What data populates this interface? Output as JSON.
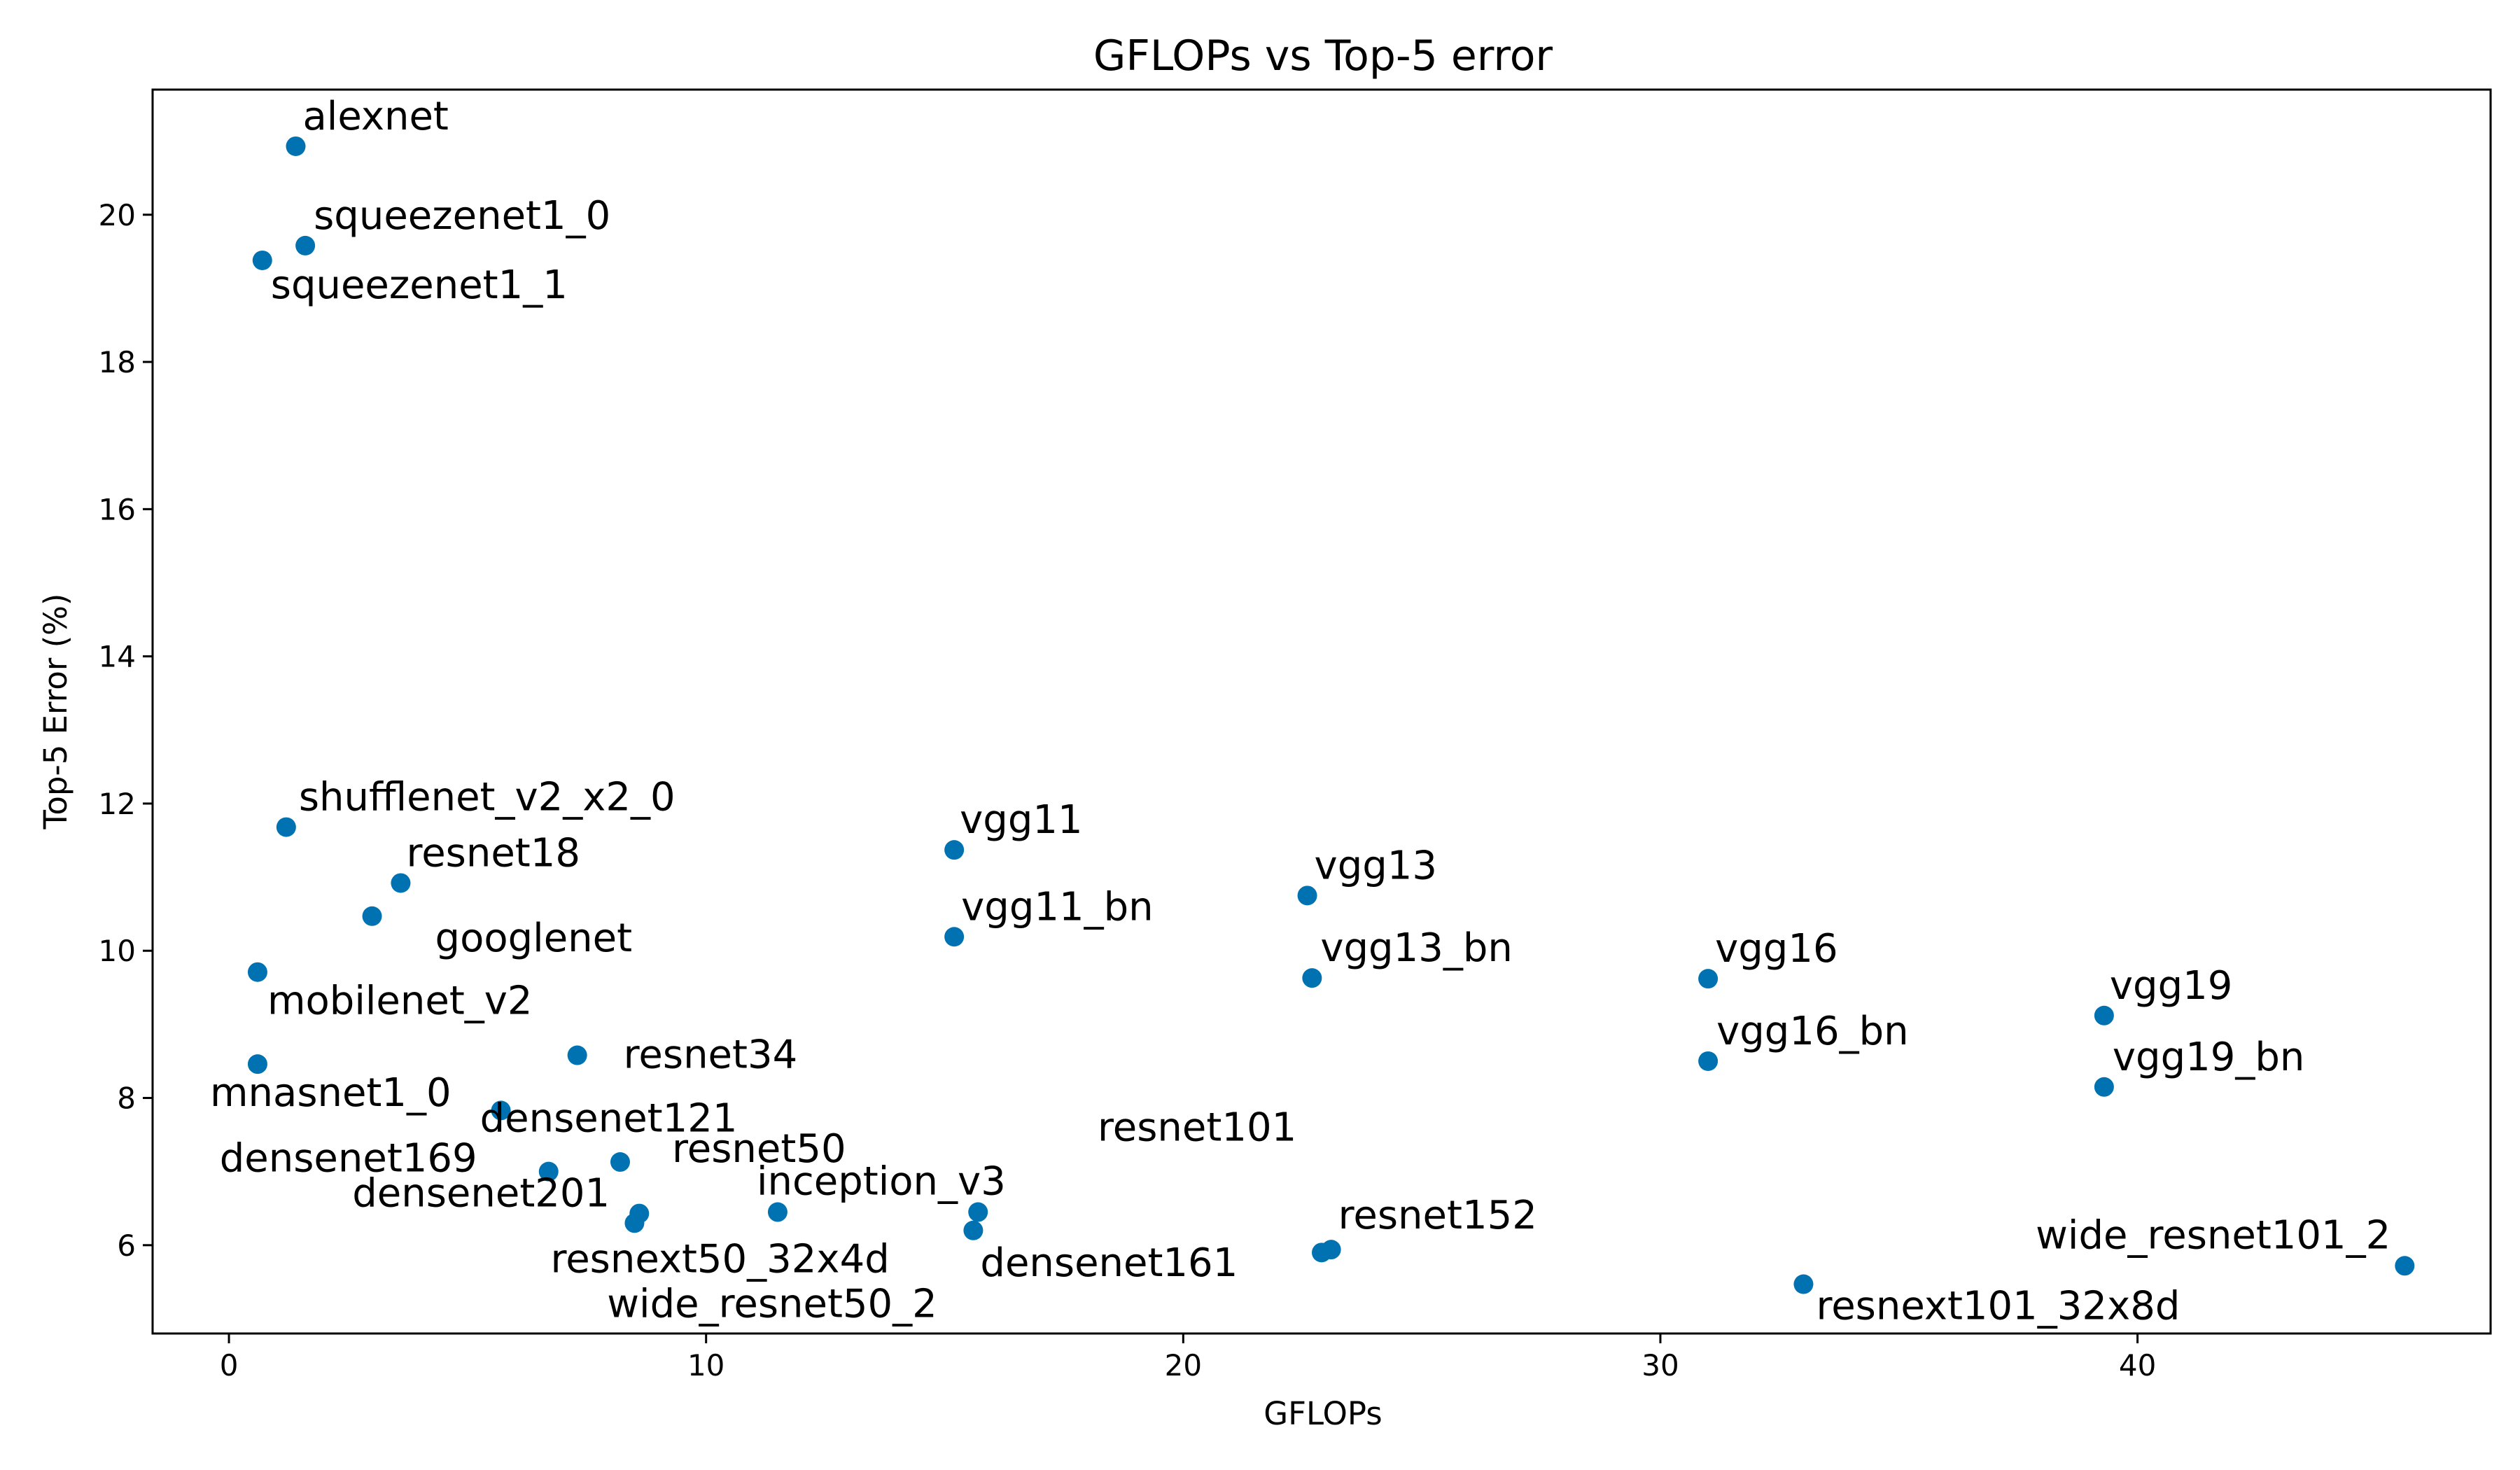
{
  "chart_data": {
    "type": "scatter",
    "title": "GFLOPs vs Top-5 error",
    "xlabel": "GFLOPs",
    "ylabel": "Top-5 Error (%)",
    "xlim": [
      -1.6,
      47.4
    ],
    "ylim": [
      4.8,
      21.7
    ],
    "xticks": [
      0,
      10,
      20,
      30,
      40
    ],
    "yticks": [
      6,
      8,
      10,
      12,
      14,
      16,
      18,
      20
    ],
    "grid": false,
    "legend": "none",
    "marker_color": "#0072b2",
    "points": [
      {
        "label": "alexnet",
        "x": 1.4,
        "y": 20.93
      },
      {
        "label": "squeezenet1_0",
        "x": 1.6,
        "y": 19.58
      },
      {
        "label": "squeezenet1_1",
        "x": 0.7,
        "y": 19.38
      },
      {
        "label": "shufflenet_v2_x2_0",
        "x": 1.2,
        "y": 11.68
      },
      {
        "label": "resnet18",
        "x": 3.6,
        "y": 10.92
      },
      {
        "label": "googlenet",
        "x": 3.0,
        "y": 10.47
      },
      {
        "label": "mobilenet_v2",
        "x": 0.6,
        "y": 9.71
      },
      {
        "label": "mnasnet1_0",
        "x": 0.6,
        "y": 8.46
      },
      {
        "label": "resnet34",
        "x": 7.3,
        "y": 8.58
      },
      {
        "label": "densenet121",
        "x": 5.7,
        "y": 7.83
      },
      {
        "label": "densenet169",
        "x": 6.7,
        "y": 7.0
      },
      {
        "label": "resnet50",
        "x": 8.2,
        "y": 7.13
      },
      {
        "label": "densenet201",
        "x": 8.6,
        "y": 6.43
      },
      {
        "label": "resnext50_32x4d",
        "x": 8.5,
        "y": 6.3
      },
      {
        "label": "inception_v3",
        "x": 11.5,
        "y": 6.45
      },
      {
        "label": "wide_resnet50_2",
        "x": 15.7,
        "y": 6.45
      },
      {
        "label": "densenet161",
        "x": 15.6,
        "y": 6.2
      },
      {
        "label": "resnet101",
        "x": 22.9,
        "y": 5.9
      },
      {
        "label": "resnet152",
        "x": 23.1,
        "y": 5.94
      },
      {
        "label": "vgg11",
        "x": 15.2,
        "y": 11.37
      },
      {
        "label": "vgg11_bn",
        "x": 15.2,
        "y": 10.19
      },
      {
        "label": "vgg13",
        "x": 22.6,
        "y": 10.75
      },
      {
        "label": "vgg13_bn",
        "x": 22.7,
        "y": 9.63
      },
      {
        "label": "vgg16",
        "x": 31.0,
        "y": 9.62
      },
      {
        "label": "vgg16_bn",
        "x": 31.0,
        "y": 8.5
      },
      {
        "label": "vgg19",
        "x": 39.3,
        "y": 9.12
      },
      {
        "label": "vgg19_bn",
        "x": 39.3,
        "y": 8.15
      },
      {
        "label": "resnext101_32x8d",
        "x": 33.0,
        "y": 5.47
      },
      {
        "label": "wide_resnet101_2",
        "x": 45.6,
        "y": 5.72
      }
    ]
  }
}
